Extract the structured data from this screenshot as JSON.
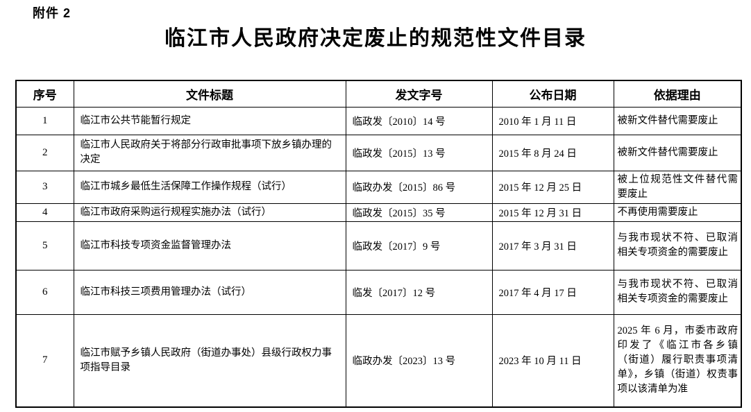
{
  "page": {
    "attachment_label": "附件 2",
    "title": "临江市人民政府决定废止的规范性文件目录"
  },
  "colors": {
    "text": "#000000",
    "border": "#000000",
    "background": "#ffffff"
  },
  "table": {
    "headers": {
      "no": "序号",
      "title": "文件标题",
      "doc_no": "发文字号",
      "date": "公布日期",
      "reason": "依据理由"
    },
    "rows": [
      {
        "no": "1",
        "title": "临江市公共节能暂行规定",
        "doc_no": "临政发〔2010〕14 号",
        "date": "2010 年 1 月 11 日",
        "reason": "被新文件替代需要废止"
      },
      {
        "no": "2",
        "title": "临江市人民政府关于将部分行政审批事项下放乡镇办理的决定",
        "doc_no": "临政发〔2015〕13 号",
        "date": "2015 年 8 月 24 日",
        "reason": "被新文件替代需要废止"
      },
      {
        "no": "3",
        "title": "临江市城乡最低生活保障工作操作规程（试行）",
        "doc_no": "临政办发〔2015〕86 号",
        "date": "2015 年 12 月 25 日",
        "reason": "被上位规范性文件替代需要废止"
      },
      {
        "no": "4",
        "title": "临江市政府采购运行规程实施办法（试行）",
        "doc_no": "临政发〔2015〕35 号",
        "date": "2015 年 12 月 31 日",
        "reason": "不再使用需要废止"
      },
      {
        "no": "5",
        "title": "临江市科技专项资金监督管理办法",
        "doc_no": "临政发〔2017〕9 号",
        "date": "2017 年 3 月 31 日",
        "reason": "与我市现状不符、已取消相关专项资金的需要废止"
      },
      {
        "no": "6",
        "title": "临江市科技三项费用管理办法（试行）",
        "doc_no": "临发〔2017〕12 号",
        "date": "2017 年 4 月 17 日",
        "reason": "与我市现状不符、已取消相关专项资金的需要废止"
      },
      {
        "no": "7",
        "title": "临江市赋予乡镇人民政府（街道办事处）县级行政权力事项指导目录",
        "doc_no": "临政办发〔2023〕13 号",
        "date": "2023 年 10 月 11 日",
        "reason": "2025 年 6 月，市委市政府印发了《临江市各乡镇（街道）履行职责事项清单》，乡镇（街道）权责事项以该清单为准"
      }
    ]
  }
}
